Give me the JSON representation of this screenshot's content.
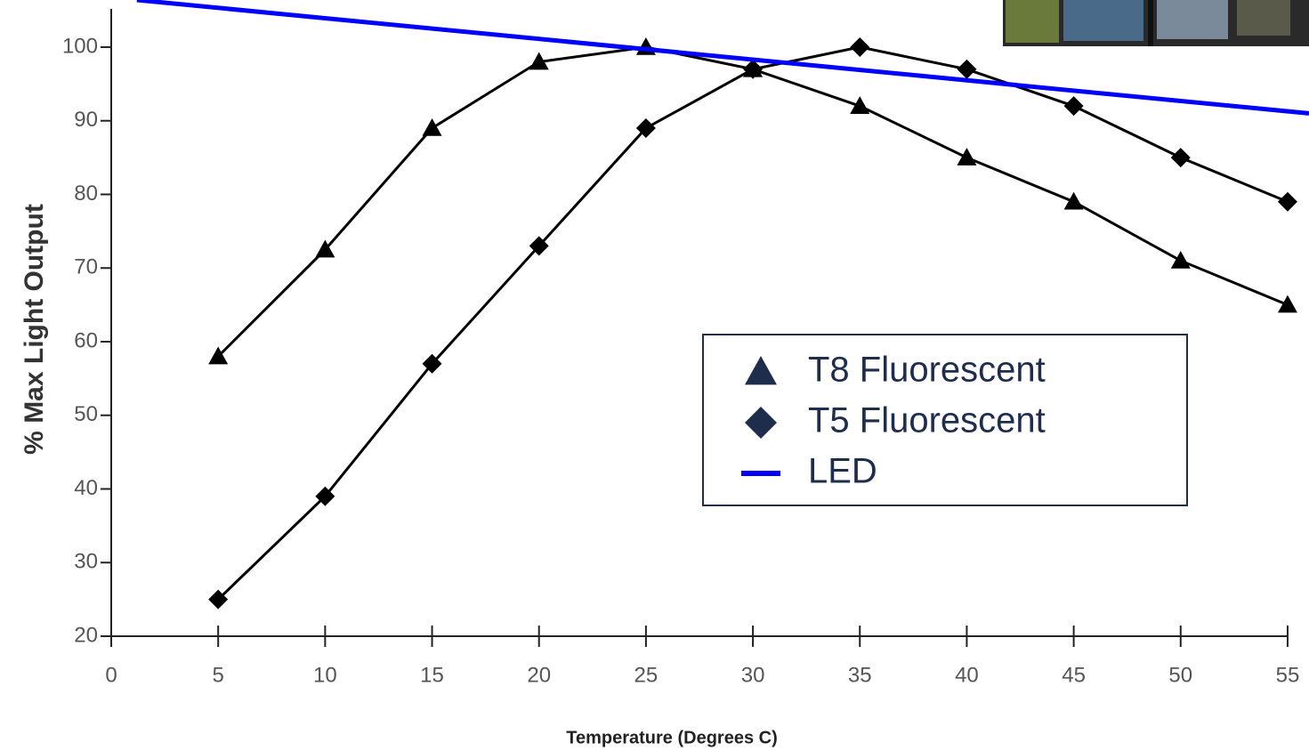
{
  "chart_data": {
    "type": "line",
    "x_label": "Temperature (Degrees C)",
    "y_label": "% Max Light Output",
    "xlim": [
      0,
      56
    ],
    "ylim": [
      20,
      106.4
    ],
    "xticks": [
      0,
      5,
      10,
      15,
      20,
      25,
      30,
      35,
      40,
      45,
      50,
      55
    ],
    "yticks": [
      20,
      30,
      40,
      50,
      60,
      70,
      80,
      90,
      100
    ],
    "legend": "center-right",
    "series": [
      {
        "name": "T8 Fluorescent",
        "color": "#000000",
        "marker": "triangle",
        "x": [
          5,
          10,
          15,
          20,
          25,
          30,
          35,
          40,
          45,
          50,
          55
        ],
        "values": [
          58,
          72.5,
          89,
          98,
          100,
          97,
          92,
          85,
          79,
          71,
          65
        ]
      },
      {
        "name": "T5 Fluorescent",
        "color": "#000000",
        "marker": "diamond",
        "x": [
          5,
          10,
          15,
          20,
          25,
          30,
          35,
          40,
          45,
          50,
          55
        ],
        "values": [
          25,
          39,
          57,
          73,
          89,
          97,
          100,
          97,
          92,
          85,
          79
        ]
      },
      {
        "name": "LED",
        "color": "#0000ff",
        "marker": "none",
        "x": [
          1.2,
          56
        ],
        "values": [
          106.4,
          91
        ]
      }
    ]
  }
}
